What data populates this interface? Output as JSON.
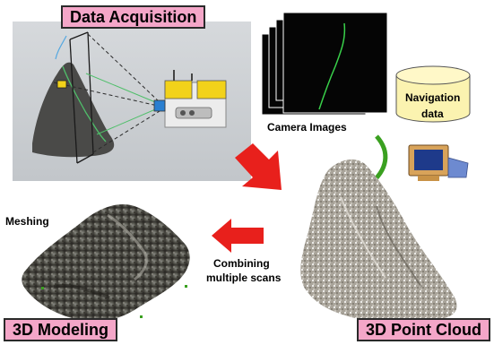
{
  "labels": {
    "data_acquisition": "Data Acquisition",
    "camera_images": "Camera Images",
    "navigation": "Navigation",
    "navigation_data": "data",
    "point_cloud": "3D Point Cloud",
    "modeling": "3D Modeling",
    "meshing": "Meshing",
    "combining_line1": "Combining",
    "combining_line2": "multiple scans"
  },
  "colors": {
    "label_pink": "#f4a6c8",
    "arrow_red": "#e8201c",
    "arrow_green": "#3aa020",
    "scanner_yellow": "#f2d21a",
    "nav_cylinder": "#fbf3b0",
    "acq_panel_gray": "#c8ccd0"
  }
}
